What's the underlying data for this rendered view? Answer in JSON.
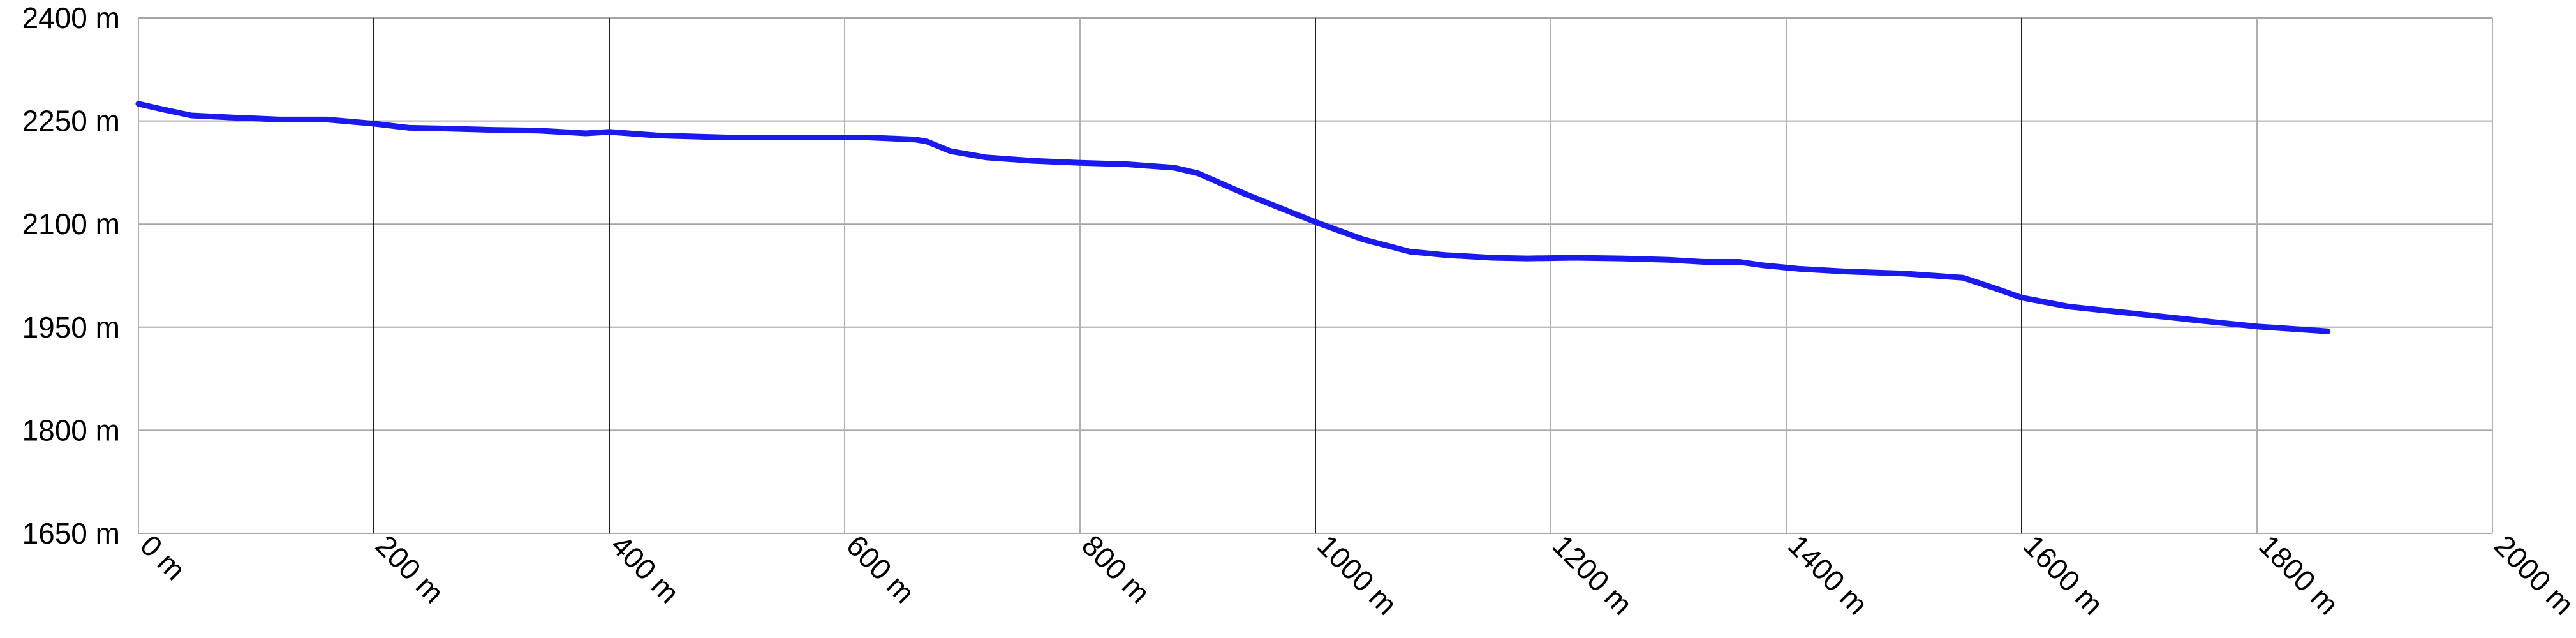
{
  "chart_data": {
    "type": "line",
    "title": "",
    "xlabel": "",
    "ylabel": "",
    "xlim": [
      0,
      2000
    ],
    "ylim": [
      1650,
      2400
    ],
    "x_ticks": [
      0,
      200,
      400,
      600,
      800,
      1000,
      1200,
      1400,
      1600,
      1800,
      2000
    ],
    "y_ticks": [
      1650,
      1800,
      1950,
      2100,
      2250,
      2400
    ],
    "x_tick_labels": [
      "0 m",
      "200 m",
      "400 m",
      "600 m",
      "800 m",
      "1000 m",
      "1200 m",
      "1400 m",
      "1600 m",
      "1800 m",
      "2000 m"
    ],
    "y_tick_labels": [
      "1650 m",
      "1800 m",
      "1950 m",
      "2100 m",
      "2250 m",
      "2400 m"
    ],
    "grid": true,
    "legend": "none",
    "line_color": "#1a1aee",
    "series": [
      {
        "x": [
          0,
          20,
          45,
          80,
          120,
          160,
          200,
          230,
          260,
          300,
          340,
          380,
          400,
          440,
          500,
          560,
          620,
          660,
          670,
          690,
          720,
          760,
          800,
          840,
          880,
          900,
          940,
          1000,
          1040,
          1080,
          1110,
          1150,
          1180,
          1220,
          1260,
          1300,
          1330,
          1360,
          1380,
          1410,
          1450,
          1500,
          1550,
          1580,
          1600,
          1640,
          1700,
          1760,
          1800,
          1860
        ],
        "y": [
          2275,
          2267,
          2258,
          2255,
          2252,
          2252,
          2246,
          2240,
          2239,
          2237,
          2236,
          2232,
          2234,
          2229,
          2226,
          2226,
          2226,
          2223,
          2220,
          2206,
          2197,
          2192,
          2189,
          2187,
          2182,
          2174,
          2144,
          2103,
          2078,
          2060,
          2055,
          2051,
          2050,
          2051,
          2050,
          2048,
          2045,
          2045,
          2040,
          2035,
          2031,
          2028,
          2022,
          2005,
          1993,
          1980,
          1969,
          1958,
          1951,
          1944
        ]
      }
    ]
  }
}
